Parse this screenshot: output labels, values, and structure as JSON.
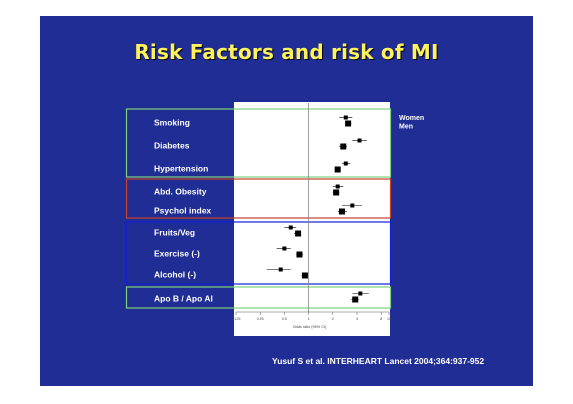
{
  "slide": {
    "title": "Risk Factors and risk of MI",
    "citation": "Yusuf S et al. INTERHEART Lancet 2004;364:937-952",
    "background": "#1f2d94",
    "title_color": "#fff25a"
  },
  "chart_data": {
    "type": "forest",
    "title": "Risk Factors and risk of MI",
    "xlabel": "Odds ratio (95% CI)",
    "xscale": "log",
    "xlim": [
      0.125,
      10
    ],
    "xticks": [
      {
        "value": 0.125,
        "label": "0.125"
      },
      {
        "value": 0.25,
        "label": "0.25"
      },
      {
        "value": 0.5,
        "label": "0.5"
      },
      {
        "value": 1,
        "label": "1"
      },
      {
        "value": 2,
        "label": "2"
      },
      {
        "value": 4,
        "label": "4"
      },
      {
        "value": 8,
        "label": "8"
      },
      {
        "value": 10,
        "label": "10"
      }
    ],
    "reference_line": 1,
    "legend": [
      "Women",
      "Men"
    ],
    "legend_placement": "top-right",
    "groups": [
      {
        "color": "#7ed37e",
        "items": [
          {
            "label": "Smoking",
            "women": {
              "or": 2.9,
              "lo": 2.4,
              "hi": 3.5
            },
            "men": {
              "or": 3.1,
              "lo": 2.9,
              "hi": 3.4
            }
          },
          {
            "label": "Diabetes",
            "women": {
              "or": 4.3,
              "lo": 3.5,
              "hi": 5.3
            },
            "men": {
              "or": 2.7,
              "lo": 2.4,
              "hi": 3.0
            }
          },
          {
            "label": "Hypertension",
            "women": {
              "or": 2.9,
              "lo": 2.6,
              "hi": 3.3
            },
            "men": {
              "or": 2.3,
              "lo": 2.1,
              "hi": 2.5
            }
          }
        ]
      },
      {
        "color": "#c8402a",
        "items": [
          {
            "label": "Abd. Obesity",
            "women": {
              "or": 2.3,
              "lo": 2.0,
              "hi": 2.7
            },
            "men": {
              "or": 2.2,
              "lo": 2.0,
              "hi": 2.4
            }
          },
          {
            "label": "Psychol index",
            "women": {
              "or": 3.5,
              "lo": 2.6,
              "hi": 4.6
            },
            "men": {
              "or": 2.6,
              "lo": 2.3,
              "hi": 3.0
            }
          }
        ]
      },
      {
        "color": "#1020d8",
        "items": [
          {
            "label": "Fruits/Veg",
            "women": {
              "or": 0.6,
              "lo": 0.5,
              "hi": 0.7
            },
            "men": {
              "or": 0.74,
              "lo": 0.66,
              "hi": 0.8
            }
          },
          {
            "label": "Exercise (-)",
            "women": {
              "or": 0.5,
              "lo": 0.4,
              "hi": 0.6
            },
            "men": {
              "or": 0.77,
              "lo": 0.7,
              "hi": 0.85
            }
          },
          {
            "label": "Alcohol (-)",
            "women": {
              "or": 0.45,
              "lo": 0.3,
              "hi": 0.6
            },
            "men": {
              "or": 0.9,
              "lo": 0.82,
              "hi": 0.95
            }
          }
        ]
      },
      {
        "color": "#7ed37e",
        "items": [
          {
            "label": "Apo B / Apo AI",
            "women": {
              "or": 4.4,
              "lo": 3.5,
              "hi": 5.6
            },
            "men": {
              "or": 3.8,
              "lo": 3.4,
              "hi": 4.2
            }
          }
        ]
      }
    ]
  }
}
